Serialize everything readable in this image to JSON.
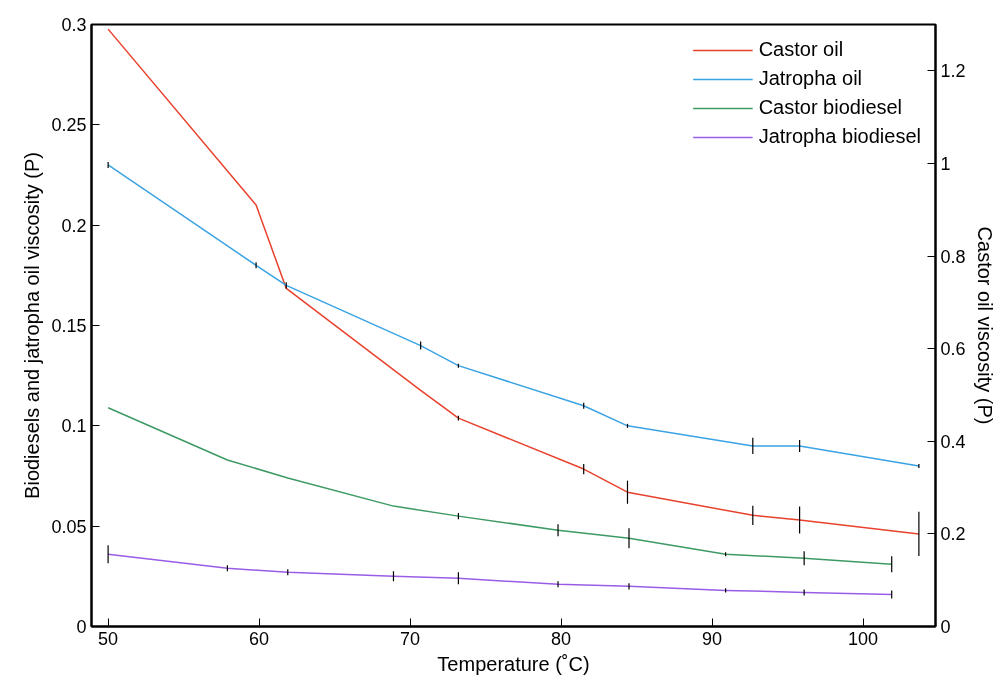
{
  "chart_data": {
    "type": "line",
    "xlabel": "Temperature (˚C)",
    "ylabel": "Biodiesels and jatropha oil viscosity (P)",
    "y2label": "Castor oil viscosity (P)",
    "xlim": [
      48.9,
      104.8
    ],
    "xticks": [
      50,
      60,
      70,
      80,
      90,
      100
    ],
    "ylim": [
      0,
      0.3
    ],
    "yticks": [
      0,
      0.05,
      0.1,
      0.15,
      0.2,
      0.25,
      0.3
    ],
    "y2lim": [
      0,
      1.3
    ],
    "y2ticks": [
      0,
      0.2,
      0.4,
      0.6,
      0.8,
      1,
      1.2
    ],
    "grid": false,
    "legend": "top right",
    "marker": "none",
    "line_style": "solid",
    "series": [
      {
        "name": "Castor oil",
        "color": "#e8412c",
        "axis": "y2",
        "x": [
          50,
          59.8,
          61.8,
          70.7,
          73.2,
          81.5,
          84.4,
          92.7,
          95.8,
          103.7
        ],
        "values": [
          1.29,
          0.91,
          0.73,
          0.51,
          0.45,
          0.34,
          0.29,
          0.24,
          0.23,
          0.2
        ],
        "errors": [
          null,
          null,
          null,
          null,
          0.005,
          0.011,
          0.025,
          0.021,
          0.029,
          0.048
        ]
      },
      {
        "name": "Jatropha oil",
        "color": "#3ba3e3",
        "x": [
          50,
          59.8,
          61.8,
          70.7,
          73.2,
          81.5,
          84.4,
          92.7,
          95.8,
          103.7
        ],
        "values": [
          0.23,
          0.18,
          0.17,
          0.14,
          0.13,
          0.11,
          0.1,
          0.09,
          0.09,
          0.08
        ],
        "errors": [
          0.0015,
          0.0015,
          0.0015,
          0.002,
          0.001,
          0.0015,
          0.001,
          0.004,
          0.003,
          0.001
        ]
      },
      {
        "name": "Castor biodiesel",
        "color": "#3e9a64",
        "x": [
          50,
          57.9,
          61.9,
          68.9,
          73.2,
          79.8,
          84.5,
          90.9,
          96.1,
          101.9
        ],
        "values": [
          0.109,
          0.083,
          0.074,
          0.06,
          0.055,
          0.048,
          0.044,
          0.036,
          0.034,
          0.031
        ],
        "errors": [
          null,
          null,
          null,
          null,
          0.0015,
          0.003,
          0.005,
          0.001,
          0.0035,
          0.004
        ]
      },
      {
        "name": "Jatropha biodiesel",
        "color": "#9a5ce6",
        "x": [
          50,
          57.9,
          61.9,
          68.9,
          73.2,
          79.8,
          84.5,
          90.9,
          96.1,
          101.9
        ],
        "values": [
          0.036,
          0.029,
          0.027,
          0.025,
          0.024,
          0.021,
          0.02,
          0.018,
          0.017,
          0.016
        ],
        "errors": [
          0.0045,
          0.0015,
          0.0015,
          0.0025,
          0.003,
          0.0015,
          0.0015,
          0.001,
          0.0015,
          0.002
        ]
      }
    ]
  }
}
